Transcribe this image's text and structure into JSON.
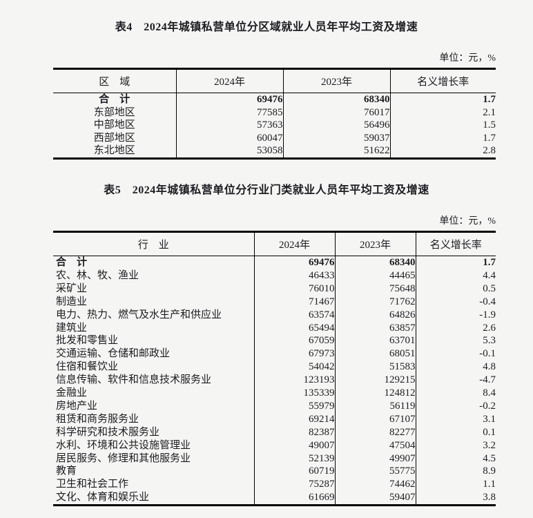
{
  "page": {
    "background_color": "#f5f5f3",
    "text_color": "#1c1c22",
    "border_color": "#000000"
  },
  "table4": {
    "title": "表4　2024年城镇私营单位分区域就业人员年平均工资及增速",
    "unit_note": "单位：元，%",
    "columns": [
      "区　域",
      "2024年",
      "2023年",
      "名义增长率"
    ],
    "rows": [
      {
        "bold": true,
        "cells": [
          "合　计",
          "69476",
          "68340",
          "1.7"
        ]
      },
      {
        "bold": false,
        "cells": [
          "东部地区",
          "77585",
          "76017",
          "2.1"
        ]
      },
      {
        "bold": false,
        "cells": [
          "中部地区",
          "57363",
          "56496",
          "1.5"
        ]
      },
      {
        "bold": false,
        "cells": [
          "西部地区",
          "60047",
          "59037",
          "1.7"
        ]
      },
      {
        "bold": false,
        "cells": [
          "东北地区",
          "53058",
          "51622",
          "2.8"
        ]
      }
    ]
  },
  "table5": {
    "title": "表5　2024年城镇私营单位分行业门类就业人员年平均工资及增速",
    "unit_note": "单位：元，%",
    "columns": [
      "行　业",
      "2024年",
      "2023年",
      "名义增长率"
    ],
    "rows": [
      {
        "bold": true,
        "cells": [
          "合　计",
          "69476",
          "68340",
          "1.7"
        ]
      },
      {
        "bold": false,
        "cells": [
          "农、林、牧、渔业",
          "46433",
          "44465",
          "4.4"
        ]
      },
      {
        "bold": false,
        "cells": [
          "采矿业",
          "76010",
          "75648",
          "0.5"
        ]
      },
      {
        "bold": false,
        "cells": [
          "制造业",
          "71467",
          "71762",
          "-0.4"
        ]
      },
      {
        "bold": false,
        "cells": [
          "电力、热力、燃气及水生产和供应业",
          "63574",
          "64826",
          "-1.9"
        ]
      },
      {
        "bold": false,
        "cells": [
          "建筑业",
          "65494",
          "63857",
          "2.6"
        ]
      },
      {
        "bold": false,
        "cells": [
          "批发和零售业",
          "67059",
          "63701",
          "5.3"
        ]
      },
      {
        "bold": false,
        "cells": [
          "交通运输、仓储和邮政业",
          "67973",
          "68051",
          "-0.1"
        ]
      },
      {
        "bold": false,
        "cells": [
          "住宿和餐饮业",
          "54042",
          "51583",
          "4.8"
        ]
      },
      {
        "bold": false,
        "cells": [
          "信息传输、软件和信息技术服务业",
          "123193",
          "129215",
          "-4.7"
        ]
      },
      {
        "bold": false,
        "cells": [
          "金融业",
          "135339",
          "124812",
          "8.4"
        ]
      },
      {
        "bold": false,
        "cells": [
          "房地产业",
          "55979",
          "56119",
          "-0.2"
        ]
      },
      {
        "bold": false,
        "cells": [
          "租赁和商务服务业",
          "69214",
          "67107",
          "3.1"
        ]
      },
      {
        "bold": false,
        "cells": [
          "科学研究和技术服务业",
          "82387",
          "82277",
          "0.1"
        ]
      },
      {
        "bold": false,
        "cells": [
          "水利、环境和公共设施管理业",
          "49007",
          "47504",
          "3.2"
        ]
      },
      {
        "bold": false,
        "cells": [
          "居民服务、修理和其他服务业",
          "52139",
          "49907",
          "4.5"
        ]
      },
      {
        "bold": false,
        "cells": [
          "教育",
          "60719",
          "55775",
          "8.9"
        ]
      },
      {
        "bold": false,
        "cells": [
          "卫生和社会工作",
          "75287",
          "74462",
          "1.1"
        ]
      },
      {
        "bold": false,
        "cells": [
          "文化、体育和娱乐业",
          "61669",
          "59407",
          "3.8"
        ]
      }
    ]
  }
}
